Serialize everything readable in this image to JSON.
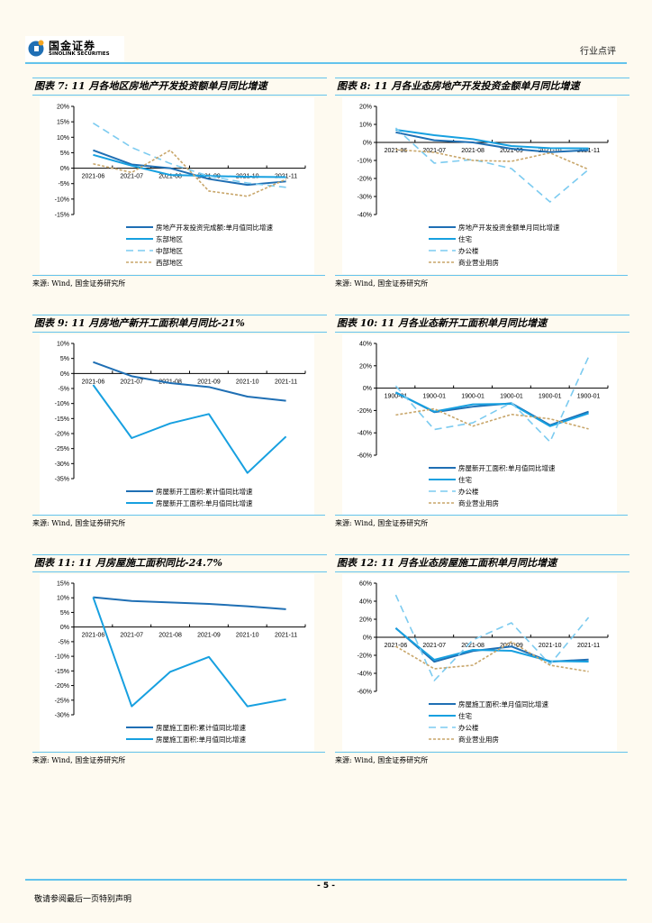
{
  "header": {
    "brand_cn": "国金证券",
    "brand_en": "SINOLINK SECURITIES",
    "doc_type": "行业点评",
    "accent_color": "#63c3ec"
  },
  "footer": {
    "page_number": "- 5 -",
    "disclaimer": "敬请参阅最后一页特别声明"
  },
  "colors": {
    "dark_blue": "#1f6fb4",
    "mid_blue": "#17a0e0",
    "light_blue": "#7ccbf0",
    "tan": "#c8a66a"
  },
  "chart_data": [
    {
      "id": "fig7",
      "type": "line",
      "title": "图表 7: 11 月各地区房地产开发投资额单月同比增速",
      "source": "来源: Wind, 国金证券研究所",
      "xlabel": "",
      "ylabel": "",
      "categories": [
        "2021-06",
        "2021-07",
        "2021-08",
        "2021-09",
        "2021-10",
        "2021-11"
      ],
      "ylim": [
        -15,
        20
      ],
      "ystep": 5,
      "yunit": "%",
      "legend": "bottom",
      "series": [
        {
          "name": "房地产开发投资完成额:单月值同比增速",
          "style": "dark_blue",
          "values": [
            5.8,
            1.2,
            0.0,
            -3.5,
            -5.4,
            -4.3
          ]
        },
        {
          "name": "东部地区",
          "style": "mid_blue",
          "values": [
            4.3,
            0.8,
            -2.2,
            -2.5,
            -2.8,
            -2.9
          ]
        },
        {
          "name": "中部地区",
          "style": "light_blue_dash",
          "values": [
            14.6,
            6.7,
            1.5,
            -2.6,
            -4.8,
            -6.2
          ]
        },
        {
          "name": "西部地区",
          "style": "tan_dot",
          "values": [
            1.4,
            -1.4,
            5.8,
            -7.4,
            -9.1,
            -3.6
          ]
        }
      ]
    },
    {
      "id": "fig8",
      "type": "line",
      "title": "图表 8: 11 月各业态房地产开发投资金额单月同比增速",
      "source": "来源: Wind, 国金证券研究所",
      "xlabel": "",
      "ylabel": "",
      "categories": [
        "2021-06",
        "2021-07",
        "2021-08",
        "2021-09",
        "2021-10",
        "2021-11"
      ],
      "ylim": [
        -40,
        20
      ],
      "ystep": 10,
      "yunit": "%",
      "legend": "bottom",
      "series": [
        {
          "name": "房地产开发投资金额单月同比增速",
          "style": "dark_blue",
          "values": [
            5.6,
            1.2,
            0.0,
            -3.5,
            -5.4,
            -4.3
          ]
        },
        {
          "name": "住宅",
          "style": "mid_blue",
          "values": [
            7.0,
            4.0,
            1.8,
            -2.0,
            -3.2,
            -3.3
          ]
        },
        {
          "name": "办公楼",
          "style": "light_blue_dash",
          "values": [
            8.0,
            -11.5,
            -9.5,
            -14.5,
            -33.0,
            -15.0
          ]
        },
        {
          "name": "商业营业用房",
          "style": "tan_dot",
          "values": [
            -4.0,
            -5.5,
            -10.0,
            -10.5,
            -5.8,
            -15.0
          ]
        }
      ]
    },
    {
      "id": "fig9",
      "type": "line",
      "title": "图表 9: 11 月房地产新开工面积单月同比-21%",
      "source": "来源: Wind, 国金证券研究所",
      "xlabel": "",
      "ylabel": "",
      "categories": [
        "2021-06",
        "2021-07",
        "2021-08",
        "2021-09",
        "2021-10",
        "2021-11"
      ],
      "ylim": [
        -35,
        10
      ],
      "ystep": 5,
      "yunit": "%",
      "legend": "bottom",
      "series": [
        {
          "name": "房屋新开工面积:累计值同比增速",
          "style": "dark_blue",
          "values": [
            3.8,
            -0.9,
            -3.2,
            -4.5,
            -7.7,
            -9.1
          ]
        },
        {
          "name": "房屋新开工面积:单月值同比增速",
          "style": "mid_blue",
          "values": [
            -3.8,
            -21.5,
            -16.6,
            -13.5,
            -33.1,
            -21.0
          ]
        }
      ]
    },
    {
      "id": "fig10",
      "type": "line",
      "title": "图表 10: 11 月各业态新开工面积单月同比增速",
      "source": "来源: Wind, 国金证券研究所",
      "xlabel": "",
      "ylabel": "",
      "categories": [
        "1900-01",
        "1900-01",
        "1900-01",
        "1900-01",
        "1900-01",
        "1900-01"
      ],
      "ylim": [
        -60,
        40
      ],
      "ystep": 20,
      "yunit": "%",
      "legend": "bottom",
      "series": [
        {
          "name": "房屋新开工面积:单月值同比增速",
          "style": "dark_blue",
          "values": [
            -3.8,
            -21.5,
            -16.6,
            -13.5,
            -33.1,
            -21.0
          ]
        },
        {
          "name": "住宅",
          "style": "mid_blue",
          "values": [
            -4.0,
            -21.0,
            -14.5,
            -14.0,
            -34.0,
            -22.5
          ]
        },
        {
          "name": "办公楼",
          "style": "light_blue_dash",
          "values": [
            2.0,
            -37.0,
            -31.0,
            -13.0,
            -48.0,
            28.0
          ]
        },
        {
          "name": "商业营业用房",
          "style": "tan_dot",
          "values": [
            -24.0,
            -18.5,
            -34.0,
            -23.5,
            -27.5,
            -36.5
          ]
        }
      ]
    },
    {
      "id": "fig11",
      "type": "line",
      "title": "图表 11: 11 月房屋施工面积同比-24.7%",
      "source": "来源: Wind, 国金证券研究所",
      "xlabel": "",
      "ylabel": "",
      "categories": [
        "2021-06",
        "2021-07",
        "2021-08",
        "2021-09",
        "2021-10",
        "2021-11"
      ],
      "ylim": [
        -30,
        15
      ],
      "ystep": 5,
      "yunit": "%",
      "legend": "bottom",
      "series": [
        {
          "name": "房屋施工面积:累计值同比增速",
          "style": "dark_blue",
          "values": [
            10.2,
            8.9,
            8.4,
            7.9,
            7.1,
            6.1
          ]
        },
        {
          "name": "房屋施工面积:单月值同比增速",
          "style": "mid_blue",
          "values": [
            10.2,
            -27.1,
            -15.3,
            -10.2,
            -27.1,
            -24.7
          ]
        }
      ]
    },
    {
      "id": "fig12",
      "type": "line",
      "title": "图表 12: 11 月各业态房屋施工面积单月同比增速",
      "source": "来源: Wind, 国金证券研究所",
      "xlabel": "",
      "ylabel": "",
      "categories": [
        "2021-06",
        "2021-07",
        "2021-08",
        "2021-09",
        "2021-10",
        "2021-11"
      ],
      "ylim": [
        -60,
        60
      ],
      "ystep": 20,
      "yunit": "%",
      "legend": "bottom",
      "series": [
        {
          "name": "房屋施工面积:单月值同比增速",
          "style": "dark_blue",
          "values": [
            10.2,
            -27.1,
            -15.3,
            -10.2,
            -27.1,
            -24.7
          ]
        },
        {
          "name": "住宅",
          "style": "mid_blue",
          "values": [
            10.0,
            -25.0,
            -14.0,
            -15.0,
            -26.5,
            -27.0
          ]
        },
        {
          "name": "办公楼",
          "style": "light_blue_dash",
          "values": [
            47.0,
            -48.0,
            -3.0,
            16.0,
            -30.0,
            22.0
          ]
        },
        {
          "name": "商业营业用房",
          "style": "tan_dot",
          "values": [
            -10.0,
            -35.0,
            -31.0,
            -5.0,
            -31.0,
            -38.0
          ]
        }
      ]
    }
  ]
}
